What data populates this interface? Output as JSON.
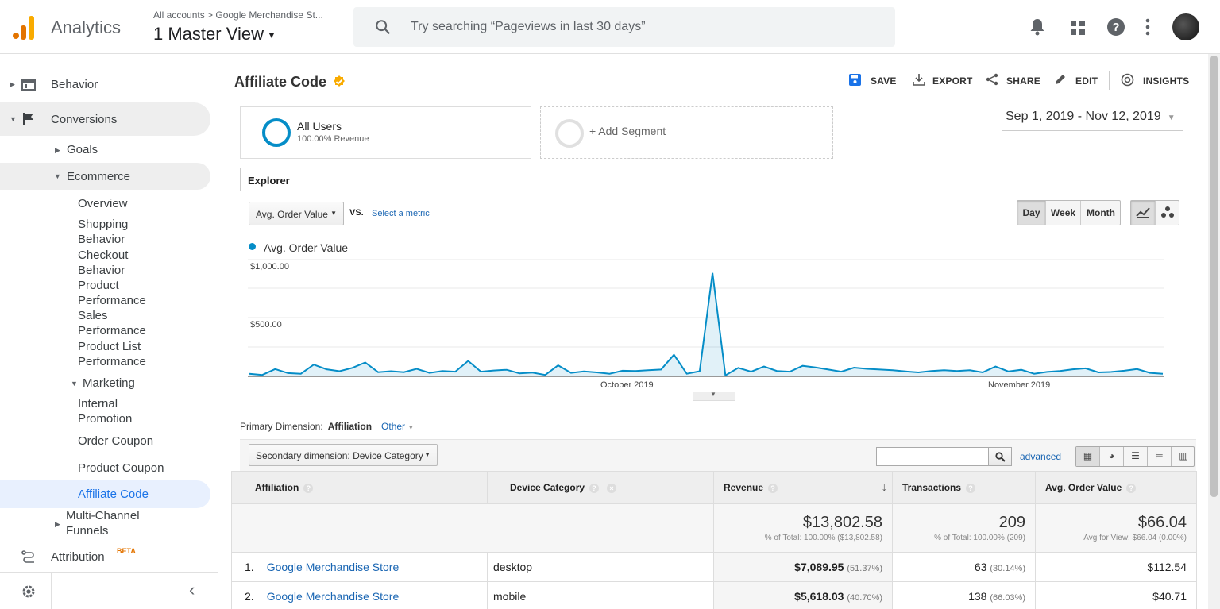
{
  "header": {
    "app_name": "Analytics",
    "account_breadcrumb": "All accounts > Google Merchandise St...",
    "view_name": "1 Master View",
    "search_placeholder": "Try searching “Pageviews in last 30 days”",
    "icons": [
      "bell-icon",
      "apps-grid-icon",
      "help-icon",
      "more-vert-icon"
    ],
    "brand_colors": {
      "orange": "#f9ab00",
      "dark_orange": "#e37400"
    }
  },
  "sidebar": {
    "items": [
      {
        "label": "Behavior",
        "icon": "behavior-icon"
      },
      {
        "label": "Conversions",
        "icon": "flag-icon"
      },
      {
        "label": "Goals"
      },
      {
        "label": "Ecommerce"
      },
      {
        "label": "Overview"
      },
      {
        "label": "Shopping Behavior"
      },
      {
        "label": "Checkout Behavior"
      },
      {
        "label": "Product Performance"
      },
      {
        "label": "Sales Performance"
      },
      {
        "label": "Product List Performance"
      },
      {
        "label": "Marketing"
      },
      {
        "label": "Internal Promotion"
      },
      {
        "label": "Order Coupon"
      },
      {
        "label": "Product Coupon"
      },
      {
        "label": "Affiliate Code"
      },
      {
        "label": "Multi-Channel Funnels"
      },
      {
        "label": "Attribution",
        "badge": "BETA",
        "icon": "attribution-icon"
      }
    ],
    "collapse_symbol": "‹"
  },
  "report": {
    "title": "Affiliate Code",
    "actions": {
      "save": "SAVE",
      "export": "EXPORT",
      "share": "SHARE",
      "edit": "EDIT",
      "insights": "INSIGHTS"
    },
    "segment": {
      "name": "All Users",
      "sub": "100.00% Revenue",
      "add": "+ Add Segment"
    },
    "date_range": "Sep 1, 2019 - Nov 12, 2019",
    "tab": "Explorer",
    "metric_select": "Avg. Order Value",
    "vs": "VS.",
    "select_metric": "Select a metric",
    "granularity": [
      "Day",
      "Week",
      "Month"
    ],
    "granularity_selected": "Day"
  },
  "chart_data": {
    "type": "area",
    "series": [
      {
        "name": "Avg. Order Value",
        "color": "#058dc7",
        "values": [
          22,
          12,
          62,
          28,
          22,
          100,
          60,
          44,
          72,
          118,
          36,
          44,
          36,
          64,
          30,
          46,
          40,
          132,
          40,
          50,
          56,
          26,
          32,
          12,
          94,
          30,
          42,
          34,
          22,
          48,
          46,
          52,
          58,
          184,
          22,
          44,
          880,
          8,
          72,
          40,
          84,
          46,
          40,
          90,
          76,
          58,
          40,
          74,
          64,
          58,
          52,
          42,
          34,
          46,
          52,
          46,
          52,
          34,
          84,
          42,
          56,
          22,
          38,
          46,
          60,
          68,
          34,
          38,
          48,
          62,
          30,
          22
        ]
      }
    ],
    "y_ticks": [
      "$1,000.00",
      "$500.00"
    ],
    "ylim": [
      0,
      1000
    ],
    "x_ticks": [
      "October 2019",
      "November 2019"
    ],
    "grid": true
  },
  "table": {
    "primary_dimension_label": "Primary Dimension:",
    "primary_dimension": "Affiliation",
    "other": "Other",
    "secondary_dimension": "Secondary dimension: Device Category",
    "advanced": "advanced",
    "headers": [
      "Affiliation",
      "Device Category",
      "Revenue",
      "Transactions",
      "Avg. Order Value"
    ],
    "totals": {
      "revenue": "$13,802.58",
      "revenue_sub": "% of Total: 100.00% ($13,802.58)",
      "transactions": "209",
      "transactions_sub": "% of Total: 100.00% (209)",
      "aov": "$66.04",
      "aov_sub": "Avg for View: $66.04 (0.00%)"
    },
    "rows": [
      {
        "idx": "1.",
        "affiliation": "Google Merchandise Store",
        "device": "desktop",
        "revenue": "$7,089.95",
        "revenue_pct": "(51.37%)",
        "transactions": "63",
        "transactions_pct": "(30.14%)",
        "aov": "$112.54"
      },
      {
        "idx": "2.",
        "affiliation": "Google Merchandise Store",
        "device": "mobile",
        "revenue": "$5,618.03",
        "revenue_pct": "(40.70%)",
        "transactions": "138",
        "transactions_pct": "(66.03%)",
        "aov": "$40.71"
      }
    ]
  }
}
